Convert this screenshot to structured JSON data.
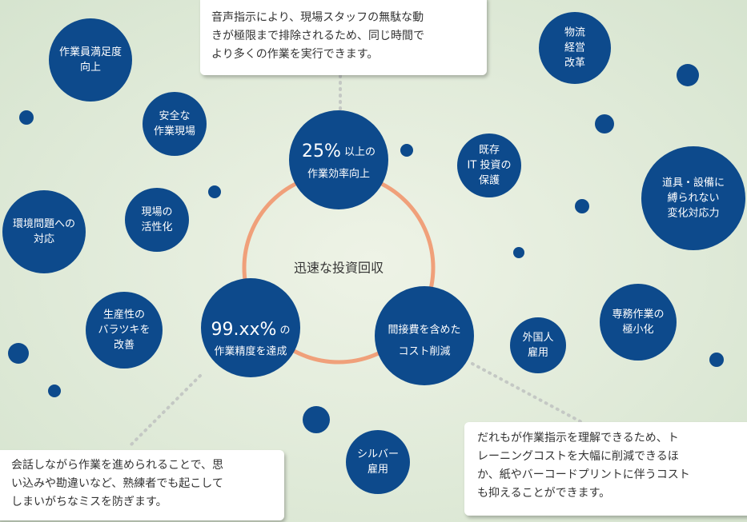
{
  "center": "迅速な投資回収",
  "main_nodes": [
    {
      "emphasis": "25%",
      "lines": [
        "以上の",
        "作業効率向上"
      ]
    },
    {
      "emphasis": "99.xx%",
      "lines": [
        "の",
        "作業精度を達成"
      ]
    },
    {
      "lines": [
        "間接費を含めた",
        "コスト削減"
      ]
    }
  ],
  "callouts": [
    {
      "lines": [
        "音声指示により、現場スタッフの無駄な動",
        "きが極限まで排除されるため、同じ時間で",
        "より多くの作業を実行できます。"
      ]
    },
    {
      "lines": [
        "会話しながら作業を進められることで、思",
        "い込みや勘違いなど、熟練者でも起こして",
        "しまいがちなミスを防ぎます。"
      ]
    },
    {
      "lines": [
        "だれもが作業指示を理解できるため、ト",
        "レーニングコストを大幅に削減できるほ",
        "か、紙やバーコードプリントに伴うコスト",
        "も抑えることができます。"
      ]
    }
  ],
  "benefits": [
    {
      "lines": [
        "作業員満足度",
        "向上"
      ]
    },
    {
      "lines": [
        "安全な",
        "作業現場"
      ]
    },
    {
      "lines": [
        "現場の",
        "活性化"
      ]
    },
    {
      "lines": [
        "環境問題への",
        "対応"
      ]
    },
    {
      "lines": [
        "生産性の",
        "バラツキを",
        "改善"
      ]
    },
    {
      "lines": [
        "シルバー",
        "雇用"
      ]
    },
    {
      "lines": [
        "外国人",
        "雇用"
      ]
    },
    {
      "lines": [
        "専務作業の",
        "極小化"
      ]
    },
    {
      "lines": [
        "既存",
        "IT 投資の",
        "保護"
      ]
    },
    {
      "lines": [
        "物流",
        "経営",
        "改革"
      ]
    },
    {
      "lines": [
        "道具・設備に",
        "縛られない",
        "変化対応力"
      ]
    }
  ]
}
